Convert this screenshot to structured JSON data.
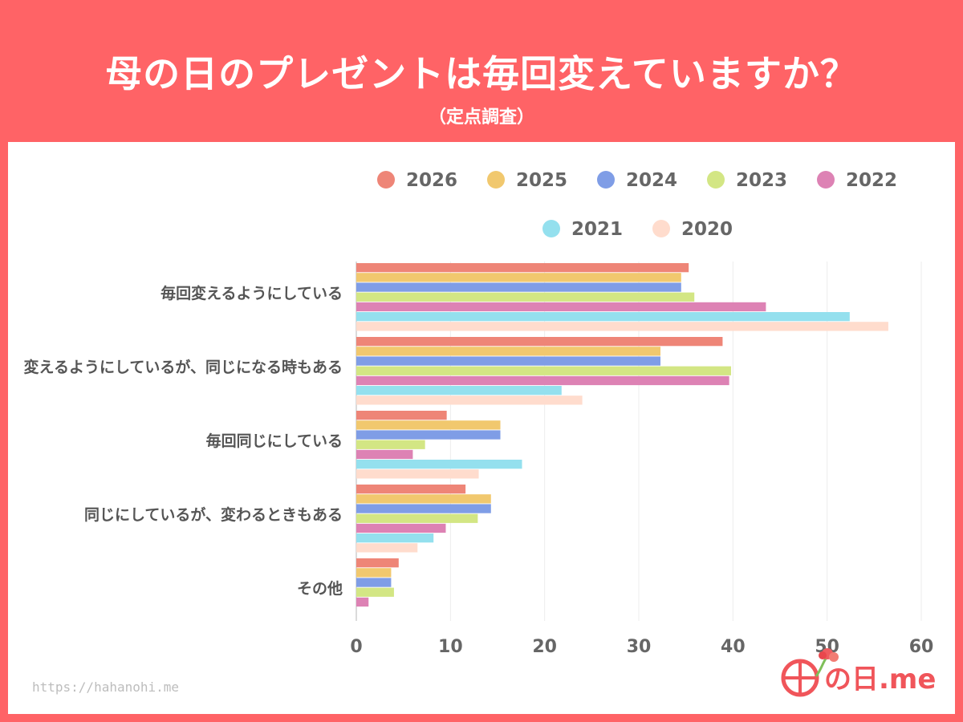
{
  "header": {
    "title": "母の日のプレゼントは毎回変えていますか？",
    "subtitle": "（定点調査）"
  },
  "colors": {
    "background": "#ff6366",
    "panel": "#ffffff",
    "series": [
      "#ee8577",
      "#f1c86e",
      "#7f9de6",
      "#d3e684",
      "#dd82b4",
      "#94e0ee",
      "#ffdccd"
    ]
  },
  "chart_data": {
    "type": "bar",
    "orientation": "horizontal",
    "categories": [
      "毎回変えるようにしている",
      "変えるようにしているが、同じになる時もある",
      "毎回同じにしている",
      "同じにしているが、変わるときもある",
      "その他"
    ],
    "series": [
      {
        "name": "2026",
        "values": [
          35.3,
          38.9,
          9.6,
          11.6,
          4.5
        ]
      },
      {
        "name": "2025",
        "values": [
          34.5,
          32.3,
          15.3,
          14.3,
          3.7
        ]
      },
      {
        "name": "2024",
        "values": [
          34.5,
          32.3,
          15.3,
          14.3,
          3.7
        ]
      },
      {
        "name": "2023",
        "values": [
          35.9,
          39.8,
          7.3,
          12.9,
          4.0
        ]
      },
      {
        "name": "2022",
        "values": [
          43.5,
          39.6,
          6.0,
          9.5,
          1.3
        ]
      },
      {
        "name": "2021",
        "values": [
          52.4,
          21.8,
          17.6,
          8.2,
          0
        ]
      },
      {
        "name": "2020",
        "values": [
          56.5,
          24.0,
          13.0,
          6.5,
          0
        ]
      }
    ],
    "xlim": [
      0,
      60
    ],
    "x_ticks": [
      "0",
      "10",
      "20",
      "30",
      "40",
      "50",
      "60"
    ],
    "legend_position": "top",
    "grid": true
  },
  "footer": {
    "source": "https://hahanohi.me",
    "logo_text": "の日.me"
  }
}
